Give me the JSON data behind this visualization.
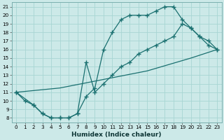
{
  "xlabel": "Humidex (Indice chaleur)",
  "xlim": [
    -0.5,
    23.5
  ],
  "ylim": [
    7.5,
    21.5
  ],
  "xticks": [
    0,
    1,
    2,
    3,
    4,
    5,
    6,
    7,
    8,
    9,
    10,
    11,
    12,
    13,
    14,
    15,
    16,
    17,
    18,
    19,
    20,
    21,
    22,
    23
  ],
  "yticks": [
    8,
    9,
    10,
    11,
    12,
    13,
    14,
    15,
    16,
    17,
    18,
    19,
    20,
    21
  ],
  "bg_color": "#cce9e8",
  "grid_color": "#a8d5d3",
  "line_color": "#1a7070",
  "line1_x": [
    0,
    1,
    2,
    3,
    4,
    5,
    6,
    7,
    8,
    9,
    10,
    11,
    12,
    13,
    14,
    15,
    16,
    17,
    18,
    19,
    20,
    21,
    22,
    23
  ],
  "line1_y": [
    11,
    10,
    9.5,
    8.5,
    8,
    8,
    8,
    8.5,
    10.5,
    11.5,
    16,
    18,
    19.5,
    20,
    20,
    20,
    20.5,
    21,
    21,
    19.5,
    18.5,
    17.5,
    17,
    16
  ],
  "line2_x": [
    0,
    2,
    3,
    4,
    5,
    6,
    7,
    8,
    9,
    10,
    11,
    12,
    13,
    14,
    15,
    16,
    17,
    18,
    19,
    20,
    21,
    22,
    23
  ],
  "line2_y": [
    11,
    9.5,
    8.5,
    8,
    8,
    8,
    8.5,
    14.5,
    11,
    12,
    13,
    14,
    14.5,
    15.5,
    16,
    16.5,
    17,
    17.5,
    19,
    18.5,
    17.5,
    16.5,
    16
  ],
  "line3_x": [
    0,
    5,
    10,
    15,
    20,
    23
  ],
  "line3_y": [
    11,
    11.5,
    12.5,
    13.5,
    15,
    16
  ]
}
